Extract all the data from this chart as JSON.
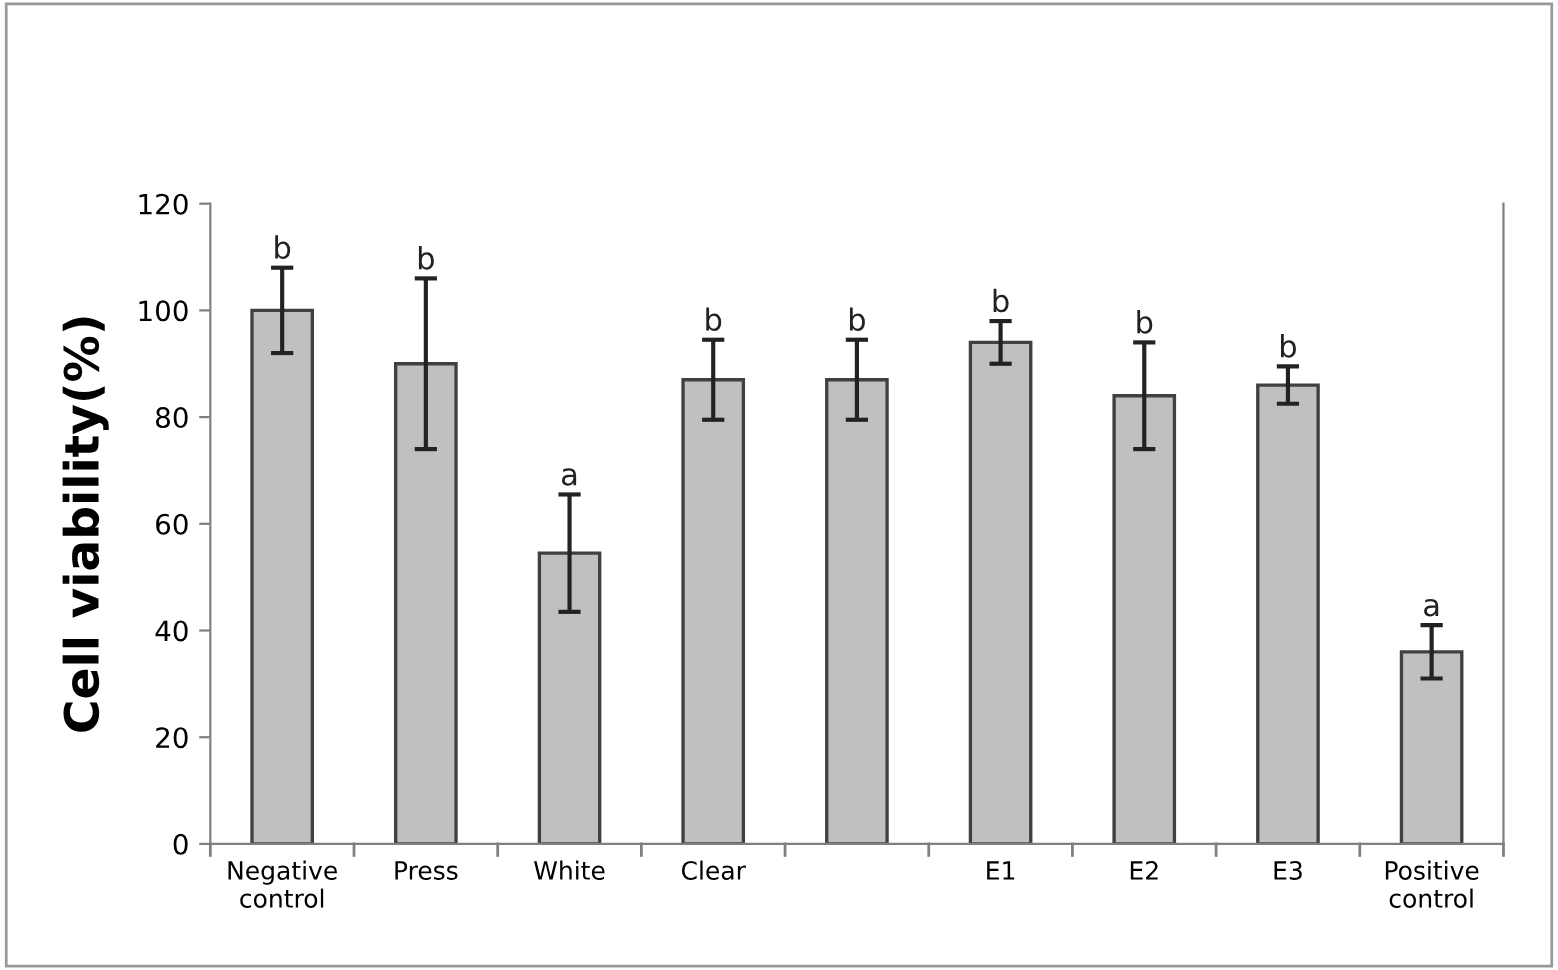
{
  "chart_data": {
    "type": "bar",
    "ylabel": "Cell viability(%)",
    "categories": [
      "Negative\ncontrol",
      "Press",
      "White",
      "Clear",
      null,
      "E1",
      "E2",
      "E3",
      "Positive\ncontrol"
    ],
    "values": [
      100,
      90,
      54.5,
      87,
      87,
      94,
      84,
      86,
      36
    ],
    "errors": [
      8,
      16,
      11,
      7.5,
      7.5,
      4,
      10,
      3.5,
      5
    ],
    "value_labels": [
      "b",
      "b",
      "a",
      "b",
      "b",
      "b",
      "b",
      "b",
      "a"
    ],
    "color": "#c0c0c0",
    "ylim": [
      0,
      120
    ],
    "yticks": [
      0,
      20,
      40,
      60,
      80,
      100,
      120
    ],
    "grid": false,
    "legend": false
  }
}
